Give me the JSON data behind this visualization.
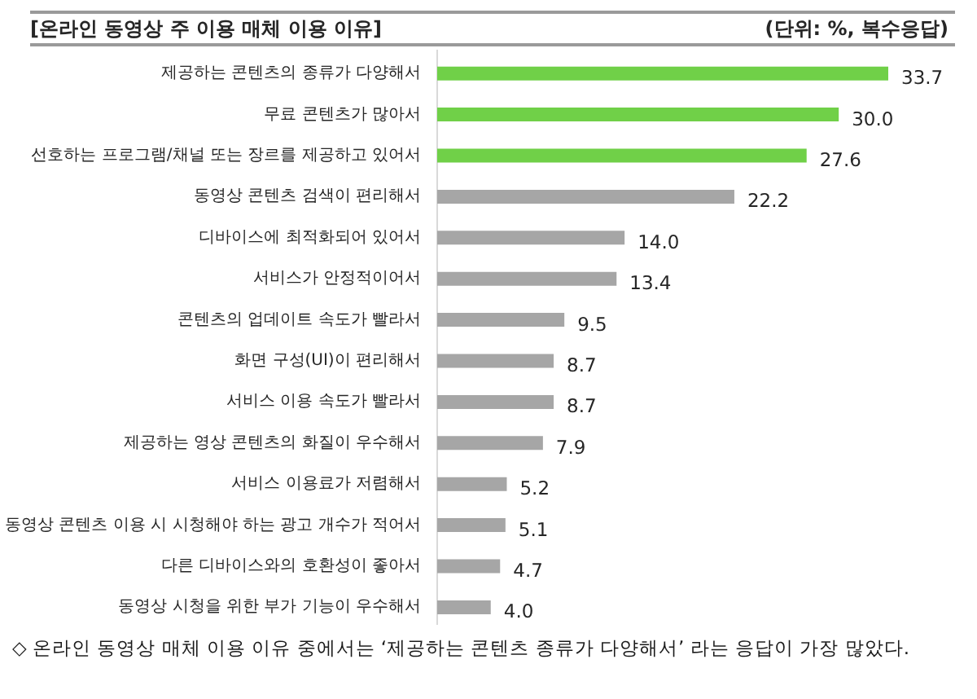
{
  "chart_data": {
    "type": "bar",
    "orientation": "horizontal",
    "title": "[온라인 동영상 주 이용 매체 이용 이유]",
    "subtitle": "(단위: %, 복수응답)",
    "categories": [
      "제공하는 콘텐츠의 종류가 다양해서",
      "무료 콘텐츠가 많아서",
      "선호하는 프로그램/채널 또는 장르를 제공하고 있어서",
      "동영상 콘텐츠 검색이 편리해서",
      "디바이스에 최적화되어 있어서",
      "서비스가 안정적이어서",
      "콘텐츠의 업데이트 속도가 빨라서",
      "화면 구성(UI)이 편리해서",
      "서비스 이용 속도가 빨라서",
      "제공하는 영상 콘텐츠의 화질이 우수해서",
      "서비스 이용료가 저렴해서",
      "동영상 콘텐츠 이용 시 시청해야 하는 광고 개수가 적어서",
      "다른 디바이스와의 호환성이 좋아서",
      "동영상 시청을 위한 부가 기능이 우수해서"
    ],
    "values": [
      33.7,
      30.0,
      27.6,
      22.2,
      14.0,
      13.4,
      9.5,
      8.7,
      8.7,
      7.9,
      5.2,
      5.1,
      4.7,
      4.0
    ],
    "value_labels": [
      "33.7",
      "30.0",
      "27.6",
      "22.2",
      "14.0",
      "13.4",
      "9.5",
      "8.7",
      "8.7",
      "7.9",
      "5.2",
      "5.1",
      "4.7",
      "4.0"
    ],
    "colors": [
      "#70d048",
      "#70d048",
      "#70d048",
      "#a6a6a6",
      "#a6a6a6",
      "#a6a6a6",
      "#a6a6a6",
      "#a6a6a6",
      "#a6a6a6",
      "#a6a6a6",
      "#a6a6a6",
      "#a6a6a6",
      "#a6a6a6",
      "#a6a6a6"
    ],
    "annotations": [
      "◇ 온라인 동영상 매체 이용 이유 중에서는 ‘제공하는 콘텐츠 종류가 다양해서’ 라는 응답이 가장 많았다."
    ]
  }
}
